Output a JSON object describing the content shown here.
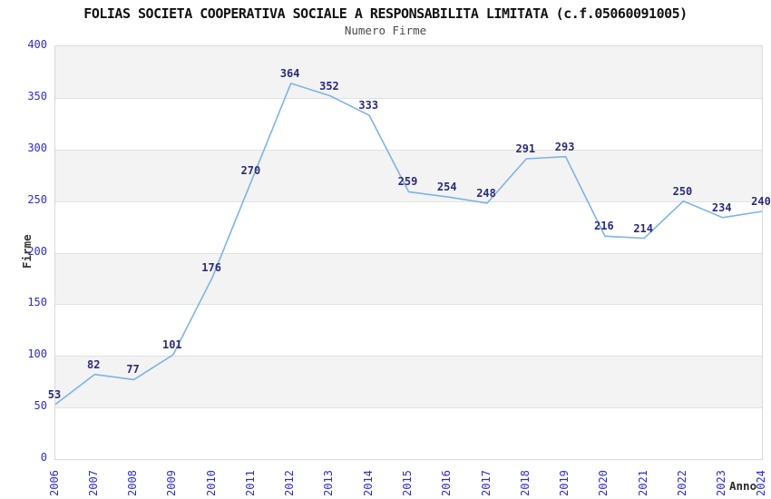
{
  "header": {
    "title": "FOLIAS SOCIETA COOPERATIVA SOCIALE A RESPONSABILITA LIMITATA (c.f.05060091005)",
    "subtitle": "Numero Firme"
  },
  "chart_data": {
    "type": "line",
    "title": "FOLIAS SOCIETA COOPERATIVA SOCIALE A RESPONSABILITA LIMITATA (c.f.05060091005)",
    "subtitle": "Numero Firme",
    "xlabel": "Anno",
    "ylabel": "Firme",
    "categories": [
      "2006",
      "2007",
      "2008",
      "2009",
      "2010",
      "2011",
      "2012",
      "2013",
      "2014",
      "2015",
      "2016",
      "2017",
      "2018",
      "2019",
      "2020",
      "2021",
      "2022",
      "2023",
      "2024"
    ],
    "values": [
      53,
      82,
      77,
      101,
      176,
      270,
      364,
      352,
      333,
      259,
      254,
      248,
      291,
      293,
      216,
      214,
      250,
      234,
      240
    ],
    "ylim": [
      0,
      400
    ],
    "yticks": [
      0,
      50,
      100,
      150,
      200,
      250,
      300,
      350,
      400
    ],
    "grid": "horizontal-bands-alternating",
    "legend": "none",
    "data_labels": true,
    "markers": false,
    "colors": {
      "line": "#7fb2e8",
      "data_label": "#2b2b7e",
      "tick_label": "#2d2dd0",
      "title": "#111111",
      "subtitle": "#4a4a52",
      "axis_title": "#333333",
      "band": "#f3f3f3",
      "band_alt": "#ffffff",
      "grid_line": "#e2e2e2",
      "plot_border": "#d9d9d9",
      "background": "#ffffff"
    }
  }
}
